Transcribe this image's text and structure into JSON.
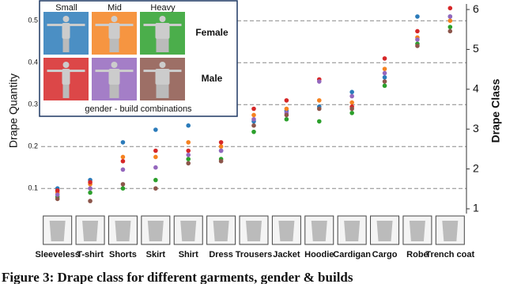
{
  "chart_data": {
    "type": "scatter",
    "y_label": "Drape Quantity",
    "y2_label": "Drape Class",
    "caption": "Figure 3: Drape class for different garments, gender & builds",
    "categories": [
      "Sleeveless",
      "T-shirt",
      "Shorts",
      "Skirt",
      "Shirt",
      "Dress",
      "Trousers",
      "Jacket",
      "Hoodie",
      "Cardigan",
      "Cargo",
      "Robe",
      "Trench coat"
    ],
    "series": [
      {
        "color": "#2b7bba",
        "values": [
          0.1,
          0.12,
          0.21,
          0.24,
          0.25,
          0.19,
          0.26,
          0.285,
          0.295,
          0.33,
          0.365,
          0.51,
          0.51
        ]
      },
      {
        "color": "#f58220",
        "values": [
          0.09,
          0.11,
          0.175,
          0.175,
          0.21,
          0.2,
          0.275,
          0.29,
          0.31,
          0.305,
          0.385,
          0.46,
          0.5
        ]
      },
      {
        "color": "#2ca02c",
        "values": [
          0.08,
          0.09,
          0.1,
          0.12,
          0.17,
          0.17,
          0.235,
          0.265,
          0.26,
          0.28,
          0.345,
          0.445,
          0.485
        ]
      },
      {
        "color": "#d62728",
        "values": [
          0.095,
          0.115,
          0.165,
          0.19,
          0.19,
          0.21,
          0.29,
          0.31,
          0.36,
          0.295,
          0.41,
          0.475,
          0.53
        ]
      },
      {
        "color": "#9467bd",
        "values": [
          0.085,
          0.1,
          0.145,
          0.15,
          0.18,
          0.19,
          0.265,
          0.28,
          0.355,
          0.32,
          0.375,
          0.455,
          0.51
        ]
      },
      {
        "color": "#8c564b",
        "values": [
          0.075,
          0.07,
          0.11,
          0.1,
          0.16,
          0.165,
          0.25,
          0.275,
          0.29,
          0.29,
          0.355,
          0.44,
          0.475
        ]
      }
    ],
    "ylim": [
      0.04,
      0.54
    ],
    "yticks": [
      0.1,
      0.2,
      0.3,
      0.4,
      0.5
    ],
    "y2lim": [
      0.88,
      6.14
    ],
    "y2ticks": [
      1,
      2,
      3,
      4,
      5,
      6
    ],
    "grid": true,
    "legend": {
      "columns": [
        "Small",
        "Mid",
        "Heavy"
      ],
      "rows": [
        "Female",
        "Male"
      ],
      "caption": "gender - build combinations"
    }
  }
}
